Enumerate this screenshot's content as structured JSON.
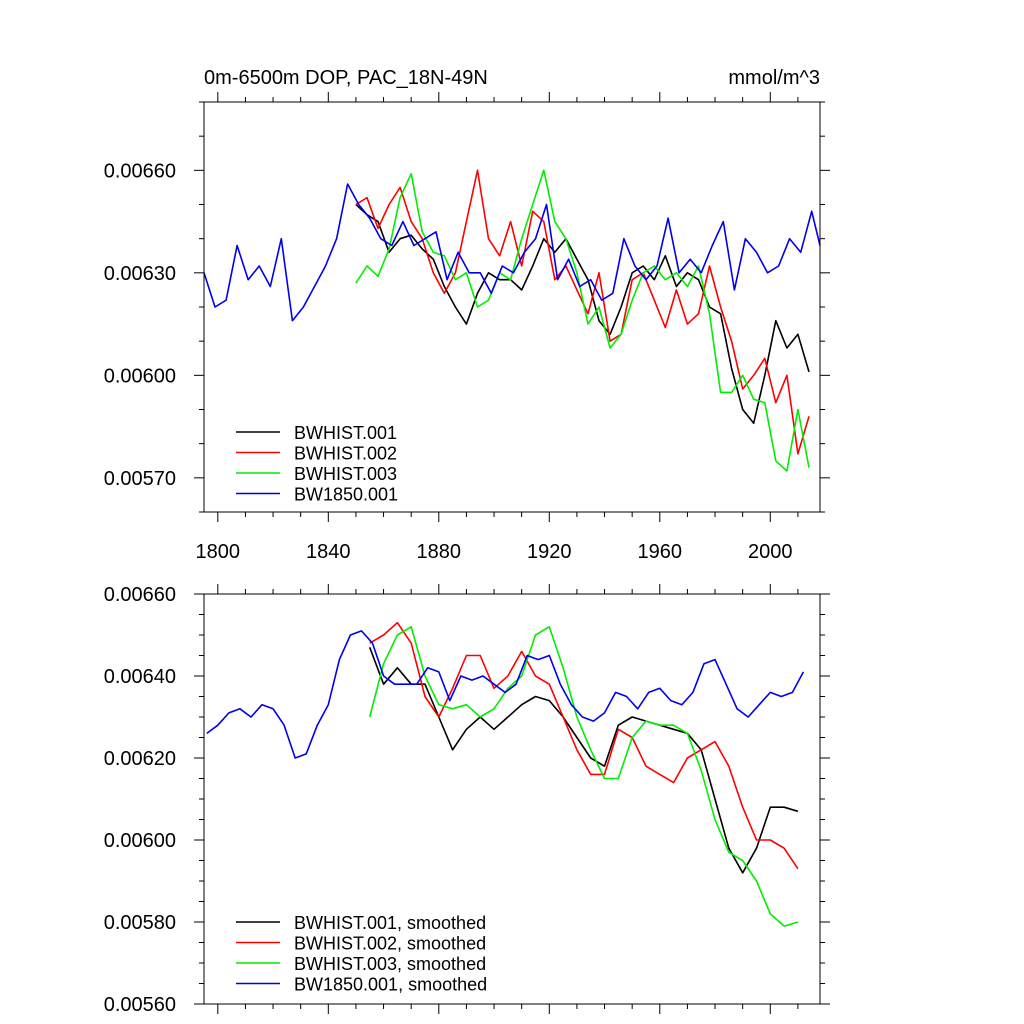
{
  "chart_data": [
    {
      "type": "line",
      "title_left": "0m-6500m DOP, PAC_18N-49N",
      "title_right": "mmol/m^3",
      "xlim": [
        1795,
        2018
      ],
      "ylim": [
        0.0056,
        0.0068
      ],
      "x_ticks": [
        1800,
        1840,
        1880,
        1920,
        1960,
        2000
      ],
      "y_ticks": [
        0.0057,
        0.006,
        0.0063,
        0.0066
      ],
      "y_tick_labels": [
        "0.00570",
        "0.00600",
        "0.00630",
        "0.00660"
      ],
      "legend_position": "bottom-left",
      "grid": false,
      "series": [
        {
          "name": "BWHIST.001",
          "color": "#000000",
          "x": [
            1850,
            1854,
            1858,
            1862,
            1866,
            1870,
            1874,
            1878,
            1882,
            1886,
            1890,
            1894,
            1898,
            1902,
            1906,
            1910,
            1914,
            1918,
            1922,
            1926,
            1930,
            1934,
            1938,
            1942,
            1946,
            1950,
            1954,
            1958,
            1962,
            1966,
            1970,
            1974,
            1978,
            1982,
            1986,
            1990,
            1994,
            1998,
            2002,
            2006,
            2010,
            2014
          ],
          "y": [
            0.0065,
            0.00647,
            0.00645,
            0.00636,
            0.0064,
            0.00641,
            0.00637,
            0.00634,
            0.00626,
            0.0062,
            0.00615,
            0.00624,
            0.0063,
            0.00628,
            0.00628,
            0.00625,
            0.00632,
            0.0064,
            0.00636,
            0.0064,
            0.00634,
            0.00628,
            0.00616,
            0.00612,
            0.0062,
            0.0063,
            0.00632,
            0.00628,
            0.00635,
            0.00626,
            0.0063,
            0.00628,
            0.0062,
            0.00618,
            0.00602,
            0.0059,
            0.00586,
            0.006,
            0.00616,
            0.00608,
            0.00612,
            0.00601
          ]
        },
        {
          "name": "BWHIST.002",
          "color": "#ff0000",
          "x": [
            1850,
            1854,
            1858,
            1862,
            1866,
            1870,
            1874,
            1878,
            1882,
            1886,
            1890,
            1894,
            1898,
            1902,
            1906,
            1910,
            1914,
            1918,
            1922,
            1926,
            1930,
            1934,
            1938,
            1942,
            1946,
            1950,
            1954,
            1958,
            1962,
            1966,
            1970,
            1974,
            1978,
            1982,
            1986,
            1990,
            1994,
            1998,
            2002,
            2006,
            2010,
            2014
          ],
          "y": [
            0.0065,
            0.00652,
            0.00643,
            0.0065,
            0.00655,
            0.00645,
            0.0064,
            0.0063,
            0.00624,
            0.0063,
            0.00645,
            0.0066,
            0.0064,
            0.00635,
            0.00645,
            0.00632,
            0.00648,
            0.00645,
            0.00628,
            0.00632,
            0.00625,
            0.00618,
            0.0063,
            0.0061,
            0.00612,
            0.00628,
            0.0063,
            0.00622,
            0.00614,
            0.00625,
            0.00615,
            0.00618,
            0.00632,
            0.0062,
            0.0061,
            0.00596,
            0.006,
            0.00605,
            0.00592,
            0.006,
            0.00577,
            0.00588
          ]
        },
        {
          "name": "BWHIST.003",
          "color": "#00ee00",
          "x": [
            1850,
            1854,
            1858,
            1862,
            1866,
            1870,
            1874,
            1878,
            1882,
            1886,
            1890,
            1894,
            1898,
            1902,
            1906,
            1910,
            1914,
            1918,
            1922,
            1926,
            1930,
            1934,
            1938,
            1942,
            1946,
            1950,
            1954,
            1958,
            1962,
            1966,
            1970,
            1974,
            1978,
            1982,
            1986,
            1990,
            1994,
            1998,
            2002,
            2006,
            2010,
            2014
          ],
          "y": [
            0.00627,
            0.00632,
            0.00629,
            0.00637,
            0.00652,
            0.00659,
            0.00642,
            0.00636,
            0.00635,
            0.00628,
            0.0063,
            0.0062,
            0.00622,
            0.0063,
            0.00628,
            0.0064,
            0.0065,
            0.0066,
            0.00645,
            0.0064,
            0.0063,
            0.00615,
            0.0062,
            0.00608,
            0.00612,
            0.00622,
            0.0063,
            0.00632,
            0.00628,
            0.0063,
            0.00626,
            0.00632,
            0.00618,
            0.00595,
            0.00595,
            0.006,
            0.00593,
            0.00592,
            0.00575,
            0.00572,
            0.0059,
            0.00573
          ]
        },
        {
          "name": "BW1850.001",
          "color": "#0000ee",
          "x": [
            1795,
            1799,
            1803,
            1807,
            1811,
            1815,
            1819,
            1823,
            1827,
            1831,
            1835,
            1839,
            1843,
            1847,
            1851,
            1855,
            1859,
            1863,
            1867,
            1871,
            1875,
            1879,
            1883,
            1887,
            1891,
            1895,
            1899,
            1903,
            1907,
            1911,
            1915,
            1919,
            1923,
            1927,
            1931,
            1935,
            1939,
            1943,
            1947,
            1951,
            1955,
            1959,
            1963,
            1967,
            1971,
            1975,
            1979,
            1983,
            1987,
            1991,
            1995,
            1999,
            2003,
            2007,
            2011,
            2015,
            2018
          ],
          "y": [
            0.0063,
            0.0062,
            0.00622,
            0.00638,
            0.00628,
            0.00632,
            0.00626,
            0.0064,
            0.00616,
            0.0062,
            0.00626,
            0.00632,
            0.0064,
            0.00656,
            0.0065,
            0.00646,
            0.0064,
            0.00638,
            0.00645,
            0.00638,
            0.0064,
            0.00642,
            0.00628,
            0.00636,
            0.0063,
            0.0063,
            0.00624,
            0.00632,
            0.0063,
            0.00636,
            0.0064,
            0.0065,
            0.00628,
            0.00634,
            0.00626,
            0.00628,
            0.00622,
            0.00624,
            0.0064,
            0.00632,
            0.00628,
            0.00632,
            0.00646,
            0.0063,
            0.00634,
            0.0063,
            0.00638,
            0.00645,
            0.00625,
            0.0064,
            0.00636,
            0.0063,
            0.00632,
            0.0064,
            0.00636,
            0.00648,
            0.00638
          ]
        }
      ]
    },
    {
      "type": "line",
      "xlim": [
        1795,
        2018
      ],
      "ylim": [
        0.0056,
        0.0066
      ],
      "x_ticks": [
        1800,
        1840,
        1880,
        1920,
        1960,
        2000
      ],
      "y_ticks": [
        0.0056,
        0.0058,
        0.006,
        0.0062,
        0.0064,
        0.0066
      ],
      "y_tick_labels": [
        "0.00560",
        "0.00580",
        "0.00600",
        "0.00620",
        "0.00640",
        "0.00660"
      ],
      "legend_position": "bottom-left",
      "grid": false,
      "series": [
        {
          "name": "BWHIST.001, smoothed",
          "color": "#000000",
          "x": [
            1855,
            1860,
            1865,
            1870,
            1875,
            1880,
            1885,
            1890,
            1895,
            1900,
            1905,
            1910,
            1915,
            1920,
            1925,
            1930,
            1935,
            1940,
            1945,
            1950,
            1955,
            1960,
            1965,
            1970,
            1975,
            1980,
            1985,
            1990,
            1995,
            2000,
            2005,
            2010
          ],
          "y": [
            0.00647,
            0.00638,
            0.00642,
            0.00638,
            0.00638,
            0.0063,
            0.00622,
            0.00627,
            0.0063,
            0.00627,
            0.0063,
            0.00633,
            0.00635,
            0.00634,
            0.0063,
            0.00625,
            0.0062,
            0.00618,
            0.00628,
            0.0063,
            0.00629,
            0.00628,
            0.00627,
            0.00626,
            0.00622,
            0.0061,
            0.00598,
            0.00592,
            0.00598,
            0.00608,
            0.00608,
            0.00607
          ]
        },
        {
          "name": "BWHIST.002, smoothed",
          "color": "#ff0000",
          "x": [
            1855,
            1860,
            1865,
            1870,
            1875,
            1880,
            1885,
            1890,
            1895,
            1900,
            1905,
            1910,
            1915,
            1920,
            1925,
            1930,
            1935,
            1940,
            1945,
            1950,
            1955,
            1960,
            1965,
            1970,
            1975,
            1980,
            1985,
            1990,
            1995,
            2000,
            2005,
            2010
          ],
          "y": [
            0.00648,
            0.0065,
            0.00653,
            0.00648,
            0.00635,
            0.0063,
            0.00637,
            0.00645,
            0.00645,
            0.00637,
            0.0064,
            0.00646,
            0.0064,
            0.00638,
            0.0063,
            0.00622,
            0.00616,
            0.00616,
            0.00627,
            0.00625,
            0.00618,
            0.00616,
            0.00614,
            0.0062,
            0.00622,
            0.00624,
            0.00618,
            0.00608,
            0.006,
            0.006,
            0.00598,
            0.00593
          ]
        },
        {
          "name": "BWHIST.003, smoothed",
          "color": "#00ee00",
          "x": [
            1855,
            1860,
            1865,
            1870,
            1875,
            1880,
            1885,
            1890,
            1895,
            1900,
            1905,
            1910,
            1915,
            1920,
            1925,
            1930,
            1935,
            1940,
            1945,
            1950,
            1955,
            1960,
            1965,
            1970,
            1975,
            1980,
            1985,
            1990,
            1995,
            2000,
            2005,
            2010
          ],
          "y": [
            0.0063,
            0.00643,
            0.0065,
            0.00652,
            0.0064,
            0.00633,
            0.00632,
            0.00633,
            0.0063,
            0.00632,
            0.00637,
            0.0064,
            0.0065,
            0.00652,
            0.00642,
            0.0063,
            0.00622,
            0.00615,
            0.00615,
            0.00625,
            0.00629,
            0.00628,
            0.00628,
            0.00626,
            0.00617,
            0.00605,
            0.00597,
            0.00595,
            0.0059,
            0.00582,
            0.00579,
            0.0058
          ]
        },
        {
          "name": "BW1850.001, smoothed",
          "color": "#0000ee",
          "x": [
            1796,
            1800,
            1804,
            1808,
            1812,
            1816,
            1820,
            1824,
            1828,
            1832,
            1836,
            1840,
            1844,
            1848,
            1852,
            1856,
            1860,
            1864,
            1868,
            1872,
            1876,
            1880,
            1884,
            1888,
            1892,
            1896,
            1900,
            1904,
            1908,
            1912,
            1916,
            1920,
            1924,
            1928,
            1932,
            1936,
            1940,
            1944,
            1948,
            1952,
            1956,
            1960,
            1964,
            1968,
            1972,
            1976,
            1980,
            1984,
            1988,
            1992,
            1996,
            2000,
            2004,
            2008,
            2012
          ],
          "y": [
            0.00626,
            0.00628,
            0.00631,
            0.00632,
            0.0063,
            0.00633,
            0.00632,
            0.00628,
            0.0062,
            0.00621,
            0.00628,
            0.00633,
            0.00644,
            0.0065,
            0.00651,
            0.00648,
            0.0064,
            0.00638,
            0.00638,
            0.00638,
            0.00642,
            0.00641,
            0.00634,
            0.0064,
            0.00639,
            0.0064,
            0.00638,
            0.00636,
            0.00638,
            0.00645,
            0.00644,
            0.00645,
            0.00638,
            0.00633,
            0.0063,
            0.00629,
            0.00631,
            0.00636,
            0.00635,
            0.00632,
            0.00636,
            0.00637,
            0.00634,
            0.00633,
            0.00636,
            0.00643,
            0.00644,
            0.00638,
            0.00632,
            0.0063,
            0.00633,
            0.00636,
            0.00635,
            0.00636,
            0.00641
          ]
        }
      ]
    }
  ]
}
